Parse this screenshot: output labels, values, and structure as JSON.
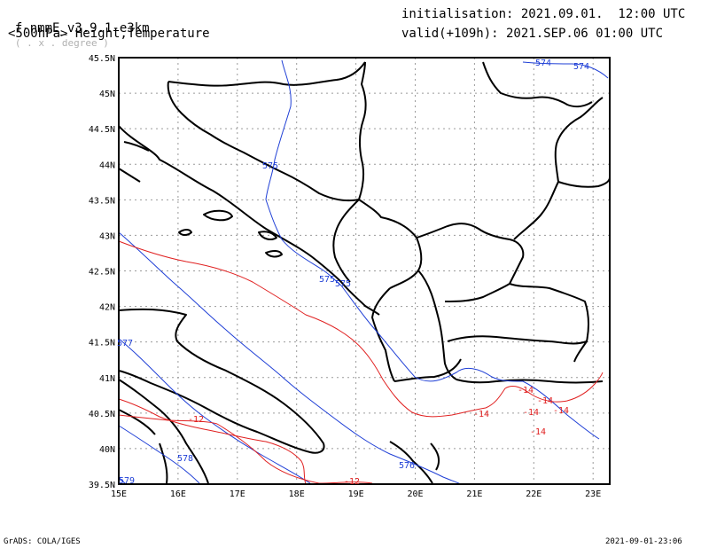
{
  "header": {
    "model": "f-nmmE_v3.9.1-e3km",
    "unit_hint": "( . x . degree )",
    "level": "<500hPa> Height,Temperature",
    "initialisation": "initialisation: 2021.09.01.  12:00 UTC",
    "valid": "valid(+109h): 2021.SEP.06 01:00 UTC"
  },
  "map": {
    "lat_labels": [
      "45.5N",
      "45N",
      "44.5N",
      "44N",
      "43.5N",
      "43N",
      "42.5N",
      "42N",
      "41.5N",
      "41N",
      "40.5N",
      "40N",
      "39.5N"
    ],
    "lon_labels": [
      "15E",
      "16E",
      "17E",
      "18E",
      "19E",
      "20E",
      "21E",
      "22E",
      "23E"
    ],
    "height_labels": [
      "574",
      "574",
      "575",
      "575",
      "575",
      "577",
      "578",
      "576",
      "579"
    ],
    "temp_labels": [
      "-12",
      "-12",
      "-14",
      "-14",
      "-14",
      "-14",
      "-14",
      "-14"
    ],
    "colors": {
      "height": "#1f3fd6",
      "temperature": "#e02020",
      "coast": "#000000",
      "grid": "#9a9a9a"
    }
  },
  "footer": {
    "left": "GrADS: COLA/IGES",
    "right": "2021-09-01-23:06"
  }
}
